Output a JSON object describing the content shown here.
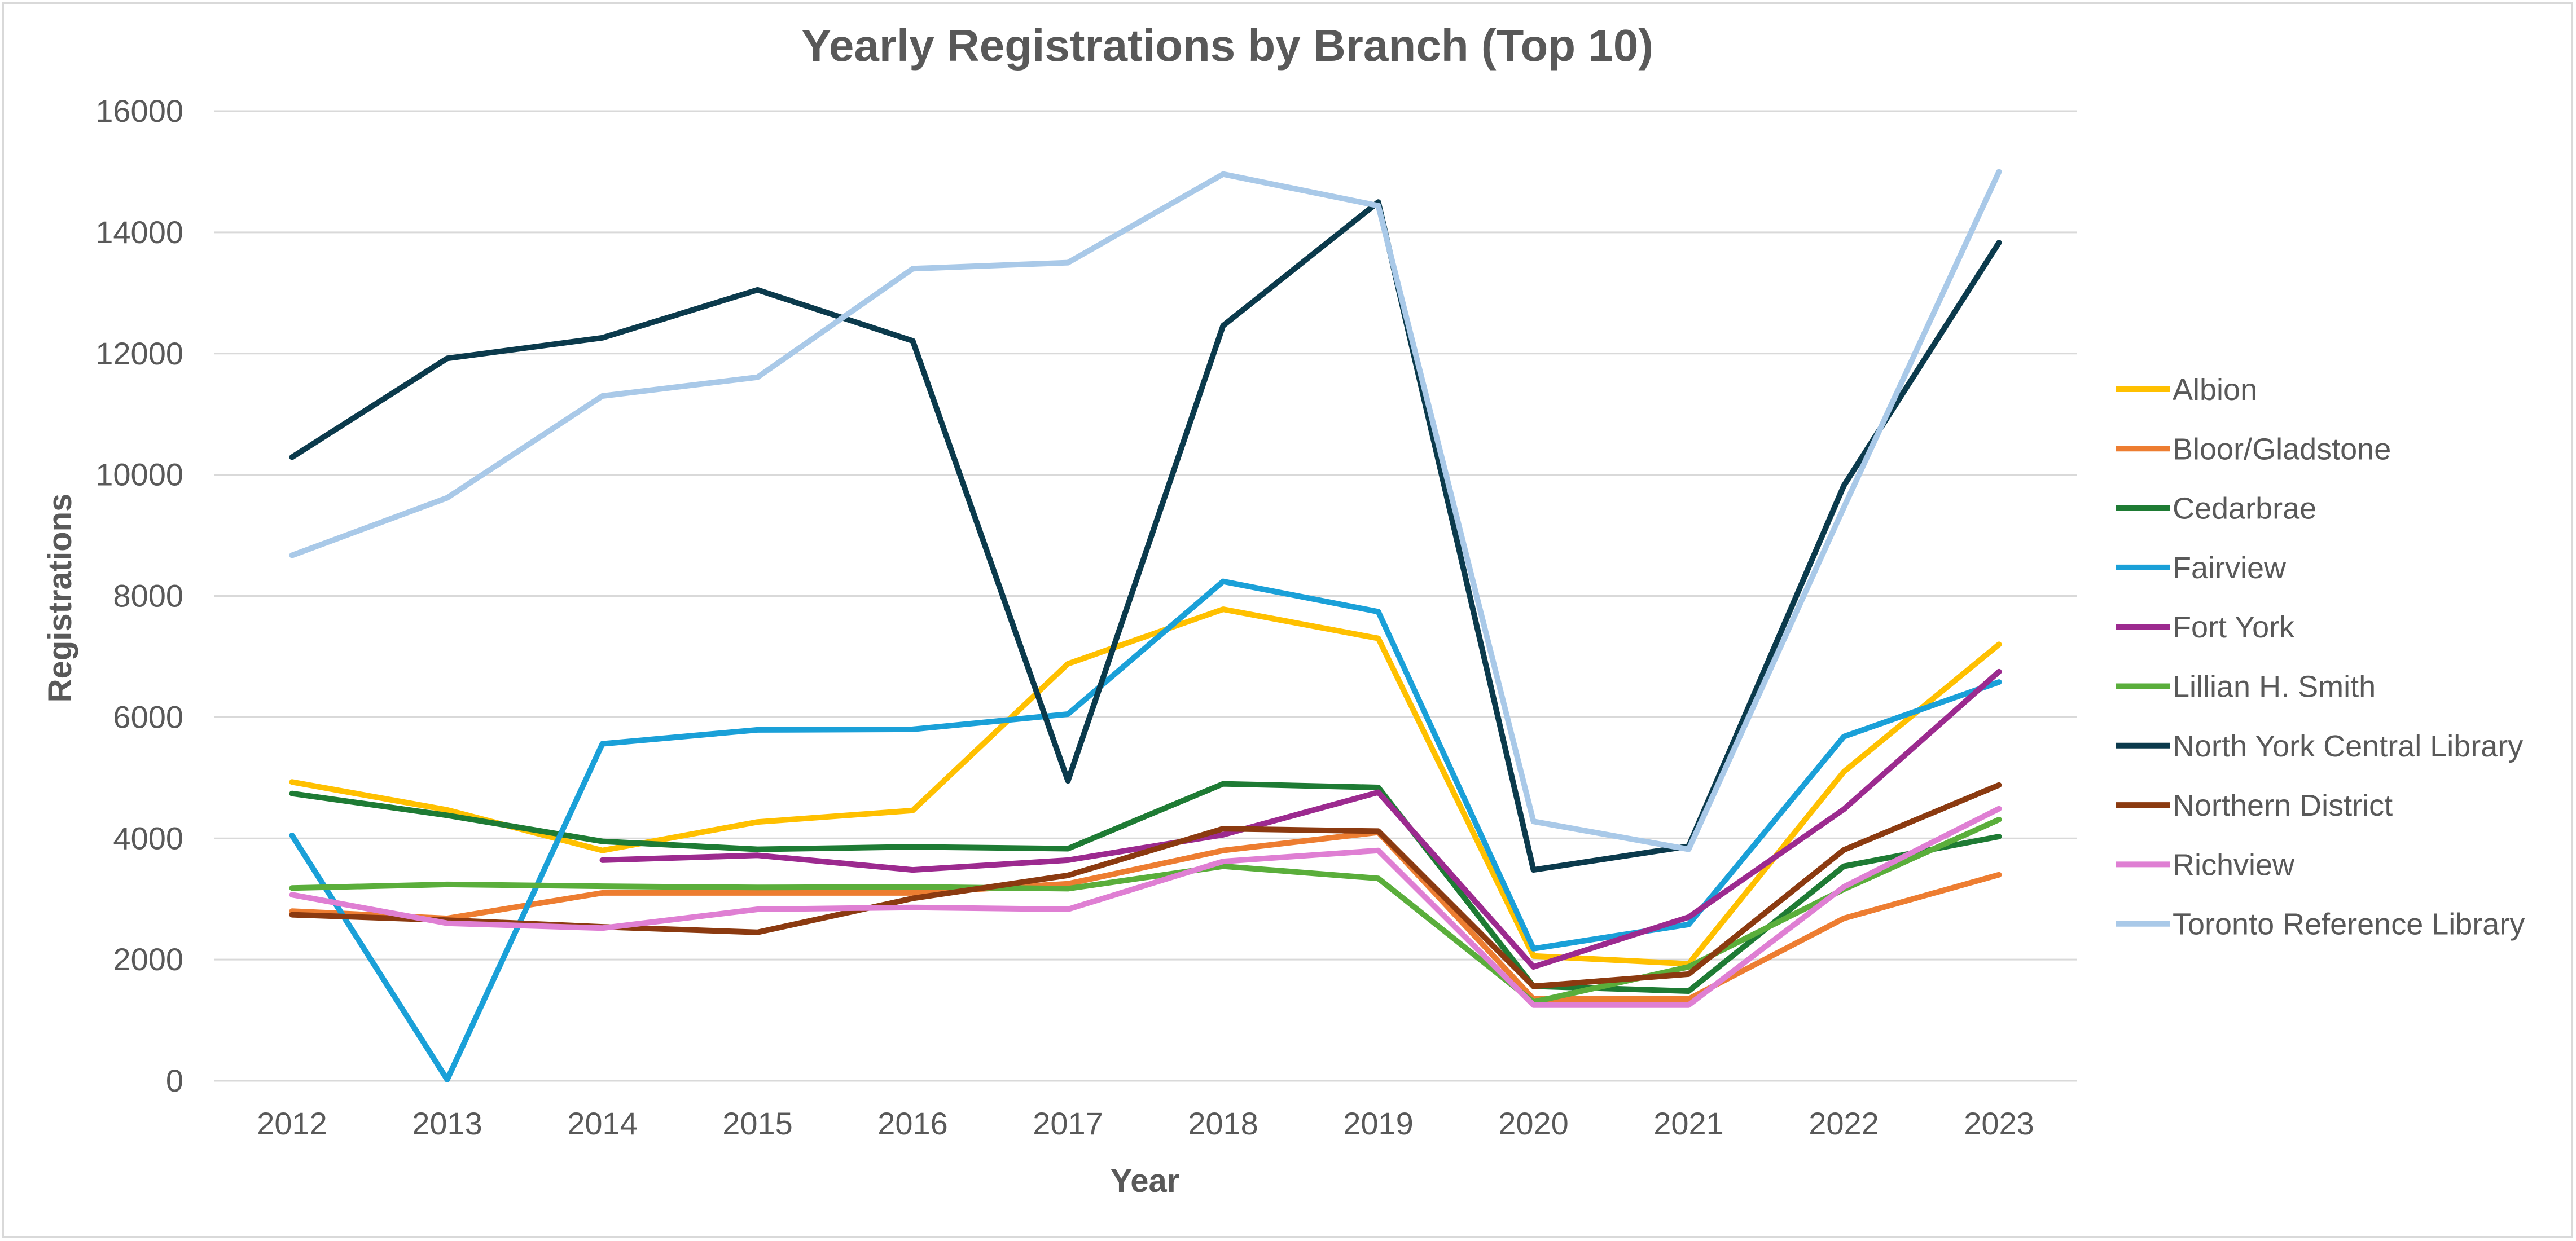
{
  "chart_data": {
    "type": "line",
    "title": "Yearly Registrations by Branch (Top 10)",
    "xlabel": "Year",
    "ylabel": "Registrations",
    "ylim": [
      0,
      16000
    ],
    "yticks": [
      "0",
      "2000",
      "4000",
      "6000",
      "8000",
      "10000",
      "12000",
      "14000",
      "16000"
    ],
    "categories": [
      "2012",
      "2013",
      "2014",
      "2015",
      "2016",
      "2017",
      "2018",
      "2019",
      "2020",
      "2021",
      "2022",
      "2023"
    ],
    "grid": "horizontal",
    "legend_position": "right",
    "series": [
      {
        "name": "Albion",
        "color": "#FFC000",
        "values": [
          4930,
          4470,
          3800,
          4270,
          4460,
          6880,
          7780,
          7300,
          2060,
          1930,
          5100,
          7200
        ]
      },
      {
        "name": "Bloor/Gladstone",
        "color": "#ED7D31",
        "values": [
          2800,
          2680,
          3100,
          3100,
          3100,
          3250,
          3800,
          4100,
          1350,
          1350,
          2680,
          3400
        ]
      },
      {
        "name": "Cedarbrae",
        "color": "#1E7B34",
        "values": [
          4740,
          4380,
          3950,
          3820,
          3860,
          3830,
          4900,
          4840,
          1560,
          1480,
          3540,
          4030
        ]
      },
      {
        "name": "Fairview",
        "color": "#1AA0D8",
        "values": [
          4050,
          20,
          5560,
          5790,
          5800,
          6050,
          8240,
          7740,
          2180,
          2580,
          5680,
          6580
        ]
      },
      {
        "name": "Fort York",
        "color": "#9C2A8F",
        "values": [
          null,
          null,
          3640,
          3720,
          3480,
          3640,
          4060,
          4760,
          1880,
          2700,
          4480,
          6750
        ]
      },
      {
        "name": "Lillian H. Smith",
        "color": "#5AAE3B",
        "values": [
          3180,
          3240,
          3210,
          3190,
          3200,
          3170,
          3540,
          3340,
          1300,
          1880,
          3160,
          4310
        ]
      },
      {
        "name": "North York Central Library",
        "color": "#0B3A4C",
        "values": [
          10290,
          11920,
          12260,
          13050,
          12210,
          4950,
          12460,
          14500,
          3480,
          3870,
          9820,
          13830
        ]
      },
      {
        "name": "Northern District",
        "color": "#8B3A10",
        "values": [
          2740,
          2650,
          2540,
          2450,
          3010,
          3390,
          4160,
          4120,
          1560,
          1760,
          3810,
          4880
        ]
      },
      {
        "name": "Richview",
        "color": "#DF7FD3",
        "values": [
          3070,
          2600,
          2520,
          2830,
          2860,
          2830,
          3620,
          3800,
          1250,
          1250,
          3200,
          4490
        ]
      },
      {
        "name": "Toronto Reference Library",
        "color": "#A9C9E8",
        "values": [
          8670,
          9620,
          11300,
          11610,
          13400,
          13500,
          14960,
          14440,
          4280,
          3820,
          9460,
          15000
        ]
      }
    ]
  }
}
